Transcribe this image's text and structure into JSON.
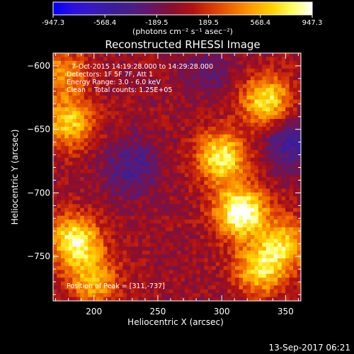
{
  "chart_data": {
    "type": "heatmap",
    "title": "Reconstructed RHESSI Image",
    "xlabel": "Heliocentric X (arcsec)",
    "ylabel": "Heliocentric Y (arcsec)",
    "xlim": [
      168,
      362
    ],
    "ylim": [
      -785,
      -590
    ],
    "xticks": [
      200,
      250,
      300,
      350
    ],
    "yticks": [
      -600,
      -650,
      -700,
      -750
    ],
    "colorbar": {
      "range": [
        -947.3,
        947.3
      ],
      "ticks": [
        "-947.3",
        "-568.4",
        "-189.5",
        "189.5",
        "568.4",
        "947.3"
      ],
      "unit_label": "(photons cm⁻² s⁻¹ asec⁻²)",
      "colors": [
        "#0000ff",
        "#2a10e0",
        "#3a18c0",
        "#3b1c9a",
        "#4a1f85",
        "#6a1560",
        "#8a0f2e",
        "#b01212",
        "#d83a08",
        "#f06a00",
        "#ffa000",
        "#ffd200",
        "#ffff60",
        "#ffffff"
      ]
    },
    "annotations": {
      "time_range": "7-Oct-2015 14:19:28.000 to 14:29:28.000",
      "detectors": "Detectors: 1F 5F 7F, Att 1",
      "energy": "Energy Range: 3.0 - 6.0 keV",
      "method_counts": "Clean    Total counts: 1.25E+05",
      "peak": "Position of Peak = [311,-737]"
    },
    "sources": [
      {
        "x": 315,
        "y": -715,
        "peak": 1.0
      },
      {
        "x": 300,
        "y": -672,
        "peak": 0.8
      },
      {
        "x": 335,
        "y": -628,
        "peak": 0.75
      },
      {
        "x": 185,
        "y": -738,
        "peak": 0.85
      },
      {
        "x": 180,
        "y": -645,
        "peak": 0.65
      },
      {
        "x": 200,
        "y": -770,
        "peak": 0.55
      },
      {
        "x": 330,
        "y": -760,
        "peak": 0.7
      },
      {
        "x": 350,
        "y": -740,
        "peak": 0.6
      },
      {
        "x": 175,
        "y": -605,
        "peak": 0.45
      }
    ],
    "dark_regions": [
      {
        "x": 230,
        "y": -680,
        "depth": 0.35
      },
      {
        "x": 355,
        "y": -660,
        "depth": 0.45
      },
      {
        "x": 290,
        "y": -605,
        "depth": 0.2
      }
    ]
  },
  "footer": {
    "timestamp": "13-Sep-2017 06:21"
  }
}
